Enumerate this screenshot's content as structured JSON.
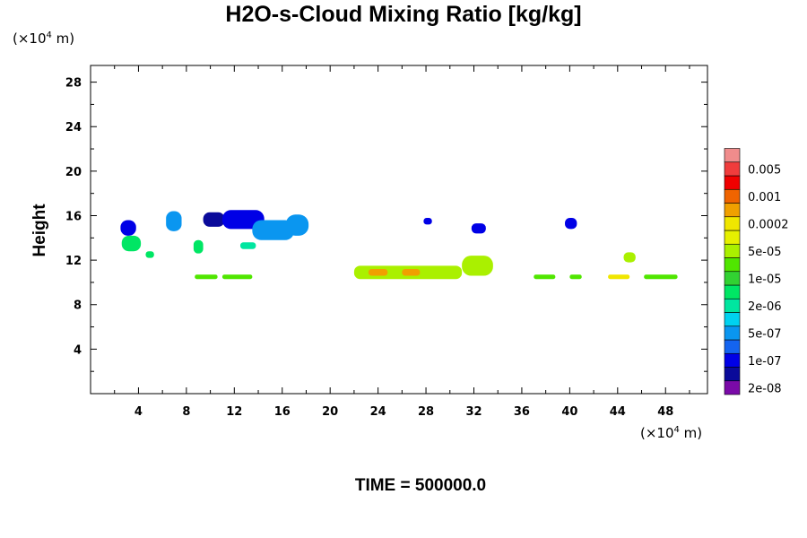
{
  "chart_data": {
    "type": "heatmap",
    "title": "H2O-s-Cloud Mixing Ratio [kg/kg]",
    "ylabel": "Height",
    "xlabel": "",
    "x_unit": "(×10⁴ m)",
    "y_unit": "(×10⁴ m)",
    "x_unit_parts": {
      "prefix": "(×10",
      "exp": "4",
      "suffix": " m)"
    },
    "xlim": [
      0,
      51.5
    ],
    "ylim": [
      0,
      29.5
    ],
    "x_ticks": [
      4,
      8,
      12,
      16,
      20,
      24,
      28,
      32,
      36,
      40,
      44,
      48
    ],
    "y_ticks": [
      4,
      8,
      12,
      16,
      20,
      24,
      28
    ],
    "legend": {
      "placement": "right",
      "entries": [
        {
          "label": "2e-08",
          "color": "#7a0aa8"
        },
        {
          "label": "",
          "color": "#0a0a9a"
        },
        {
          "label": "1e-07",
          "color": "#0000e6"
        },
        {
          "label": "",
          "color": "#1464f0"
        },
        {
          "label": "5e-07",
          "color": "#0a96f0"
        },
        {
          "label": "",
          "color": "#00d2f0"
        },
        {
          "label": "2e-06",
          "color": "#00e6a0"
        },
        {
          "label": "",
          "color": "#00e664"
        },
        {
          "label": "1e-05",
          "color": "#32d232"
        },
        {
          "label": "",
          "color": "#50e600"
        },
        {
          "label": "5e-05",
          "color": "#aaf000"
        },
        {
          "label": "",
          "color": "#e6f000"
        },
        {
          "label": "0.0002",
          "color": "#f0e600"
        },
        {
          "label": "",
          "color": "#f0a000"
        },
        {
          "label": "0.001",
          "color": "#f06400"
        },
        {
          "label": "",
          "color": "#f00000"
        },
        {
          "label": "0.005",
          "color": "#f03c3c"
        },
        {
          "label": "",
          "color": "#f08c8c"
        }
      ]
    },
    "regions": [
      {
        "x": [
          2.5,
          3.8
        ],
        "y": [
          14.2,
          15.6
        ],
        "color": "#0000e6"
      },
      {
        "x": [
          2.6,
          4.2
        ],
        "y": [
          12.8,
          14.2
        ],
        "color": "#00e664"
      },
      {
        "x": [
          4.6,
          5.3
        ],
        "y": [
          12.2,
          12.8
        ],
        "color": "#00e664"
      },
      {
        "x": [
          6.3,
          7.6
        ],
        "y": [
          14.6,
          16.4
        ],
        "color": "#0a96f0"
      },
      {
        "x": [
          8.6,
          9.4
        ],
        "y": [
          12.6,
          13.8
        ],
        "color": "#00e664"
      },
      {
        "x": [
          8.7,
          10.6
        ],
        "y": [
          10.3,
          10.7
        ],
        "color": "#50e600"
      },
      {
        "x": [
          9.4,
          11.2
        ],
        "y": [
          15.0,
          16.3
        ],
        "color": "#0a0a9a"
      },
      {
        "x": [
          11.0,
          13.5
        ],
        "y": [
          10.3,
          10.7
        ],
        "color": "#50e600"
      },
      {
        "x": [
          11.0,
          14.5
        ],
        "y": [
          14.8,
          16.5
        ],
        "color": "#0000e6"
      },
      {
        "x": [
          13.5,
          17.0
        ],
        "y": [
          13.8,
          15.6
        ],
        "color": "#0a96f0"
      },
      {
        "x": [
          12.5,
          13.8
        ],
        "y": [
          13.0,
          13.6
        ],
        "color": "#00e6a0"
      },
      {
        "x": [
          16.3,
          18.2
        ],
        "y": [
          14.2,
          16.1
        ],
        "color": "#0a96f0"
      },
      {
        "x": [
          22.0,
          31.0
        ],
        "y": [
          10.3,
          11.5
        ],
        "color": "#aaf000"
      },
      {
        "x": [
          23.2,
          24.8
        ],
        "y": [
          10.6,
          11.2
        ],
        "color": "#f0a000"
      },
      {
        "x": [
          26.0,
          27.5
        ],
        "y": [
          10.6,
          11.2
        ],
        "color": "#f0a000"
      },
      {
        "x": [
          31.0,
          33.6
        ],
        "y": [
          10.6,
          12.4
        ],
        "color": "#aaf000"
      },
      {
        "x": [
          27.8,
          28.5
        ],
        "y": [
          15.2,
          15.8
        ],
        "color": "#0000e6"
      },
      {
        "x": [
          31.8,
          33.0
        ],
        "y": [
          14.4,
          15.3
        ],
        "color": "#0000e6"
      },
      {
        "x": [
          39.6,
          40.6
        ],
        "y": [
          14.8,
          15.8
        ],
        "color": "#0000e6"
      },
      {
        "x": [
          37.0,
          38.8
        ],
        "y": [
          10.3,
          10.7
        ],
        "color": "#50e600"
      },
      {
        "x": [
          40.0,
          41.0
        ],
        "y": [
          10.3,
          10.7
        ],
        "color": "#50e600"
      },
      {
        "x": [
          43.2,
          45.0
        ],
        "y": [
          10.3,
          10.7
        ],
        "color": "#f0e600"
      },
      {
        "x": [
          44.5,
          45.5
        ],
        "y": [
          11.8,
          12.7
        ],
        "color": "#aaf000"
      },
      {
        "x": [
          46.2,
          49.0
        ],
        "y": [
          10.3,
          10.7
        ],
        "color": "#50e600"
      }
    ]
  },
  "footer": {
    "time_label": "TIME = 500000.0"
  }
}
